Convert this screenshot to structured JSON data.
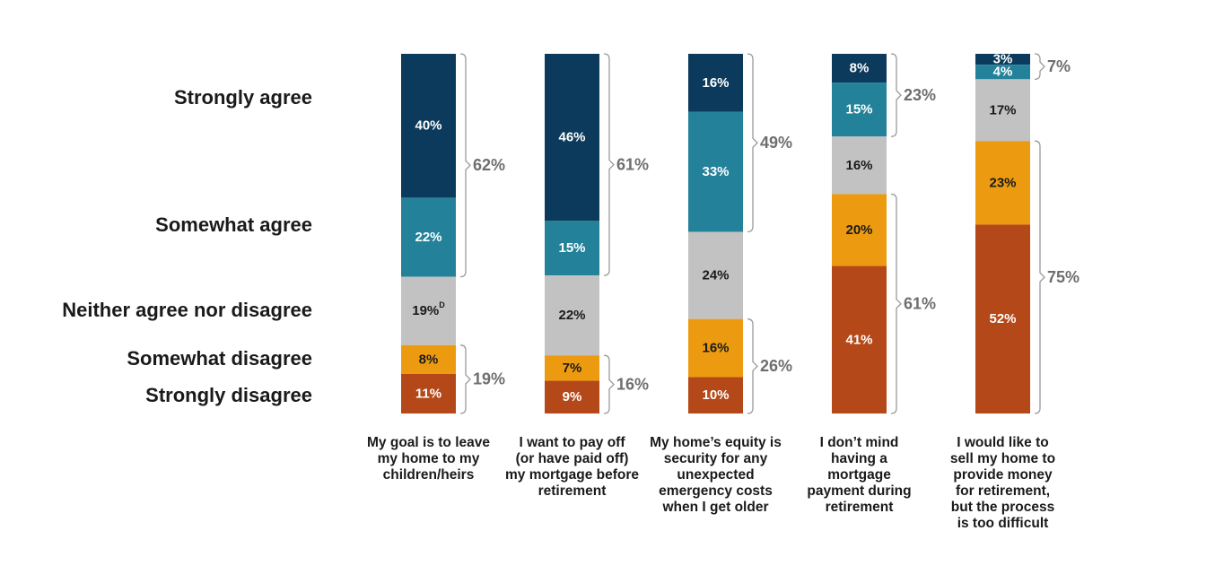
{
  "chart_data": {
    "type": "bar",
    "stacked": true,
    "orientation": "vertical",
    "legend_placement": "left",
    "grid": false,
    "ylim": [
      0,
      100
    ],
    "levels": [
      "Strongly agree",
      "Somewhat agree",
      "Neither agree nor disagree",
      "Somewhat disagree",
      "Strongly disagree"
    ],
    "colors": {
      "Strongly agree": "#0b3a5c",
      "Somewhat agree": "#23829a",
      "Neither agree nor disagree": "#c2c2c2",
      "Somewhat disagree": "#ec9b10",
      "Strongly disagree": "#b54818"
    },
    "text_colors": {
      "Strongly agree": "#ffffff",
      "Somewhat agree": "#ffffff",
      "Neither agree nor disagree": "#1a1a1a",
      "Somewhat disagree": "#1a1a1a",
      "Strongly disagree": "#ffffff"
    },
    "categories": [
      {
        "label_lines": [
          "My goal is to leave",
          "my home to my",
          "children/heirs"
        ],
        "values": [
          40,
          22,
          19,
          8,
          11
        ],
        "neutral_superscript": "D",
        "agree_total": "62%",
        "disagree_total": "19%"
      },
      {
        "label_lines": [
          "I want to pay off",
          "(or have paid off)",
          "my mortgage before",
          "retirement"
        ],
        "values": [
          46,
          15,
          22,
          7,
          9
        ],
        "agree_total": "61%",
        "disagree_total": "16%"
      },
      {
        "label_lines": [
          "My home’s equity is",
          "security for any",
          "unexpected",
          "emergency costs",
          "when I get older"
        ],
        "values": [
          16,
          33,
          24,
          16,
          10
        ],
        "agree_total": "49%",
        "disagree_total": "26%"
      },
      {
        "label_lines": [
          "I don’t mind",
          "having a",
          "mortgage",
          "payment during",
          "retirement"
        ],
        "values": [
          8,
          15,
          16,
          20,
          41
        ],
        "agree_total": "23%",
        "disagree_total": "61%"
      },
      {
        "label_lines": [
          "I would like to",
          "sell my home to",
          "provide money",
          "for retirement,",
          "but the process",
          "is too difficult"
        ],
        "values": [
          3,
          4,
          17,
          23,
          52
        ],
        "agree_total": "7%",
        "disagree_total": "75%"
      }
    ]
  }
}
